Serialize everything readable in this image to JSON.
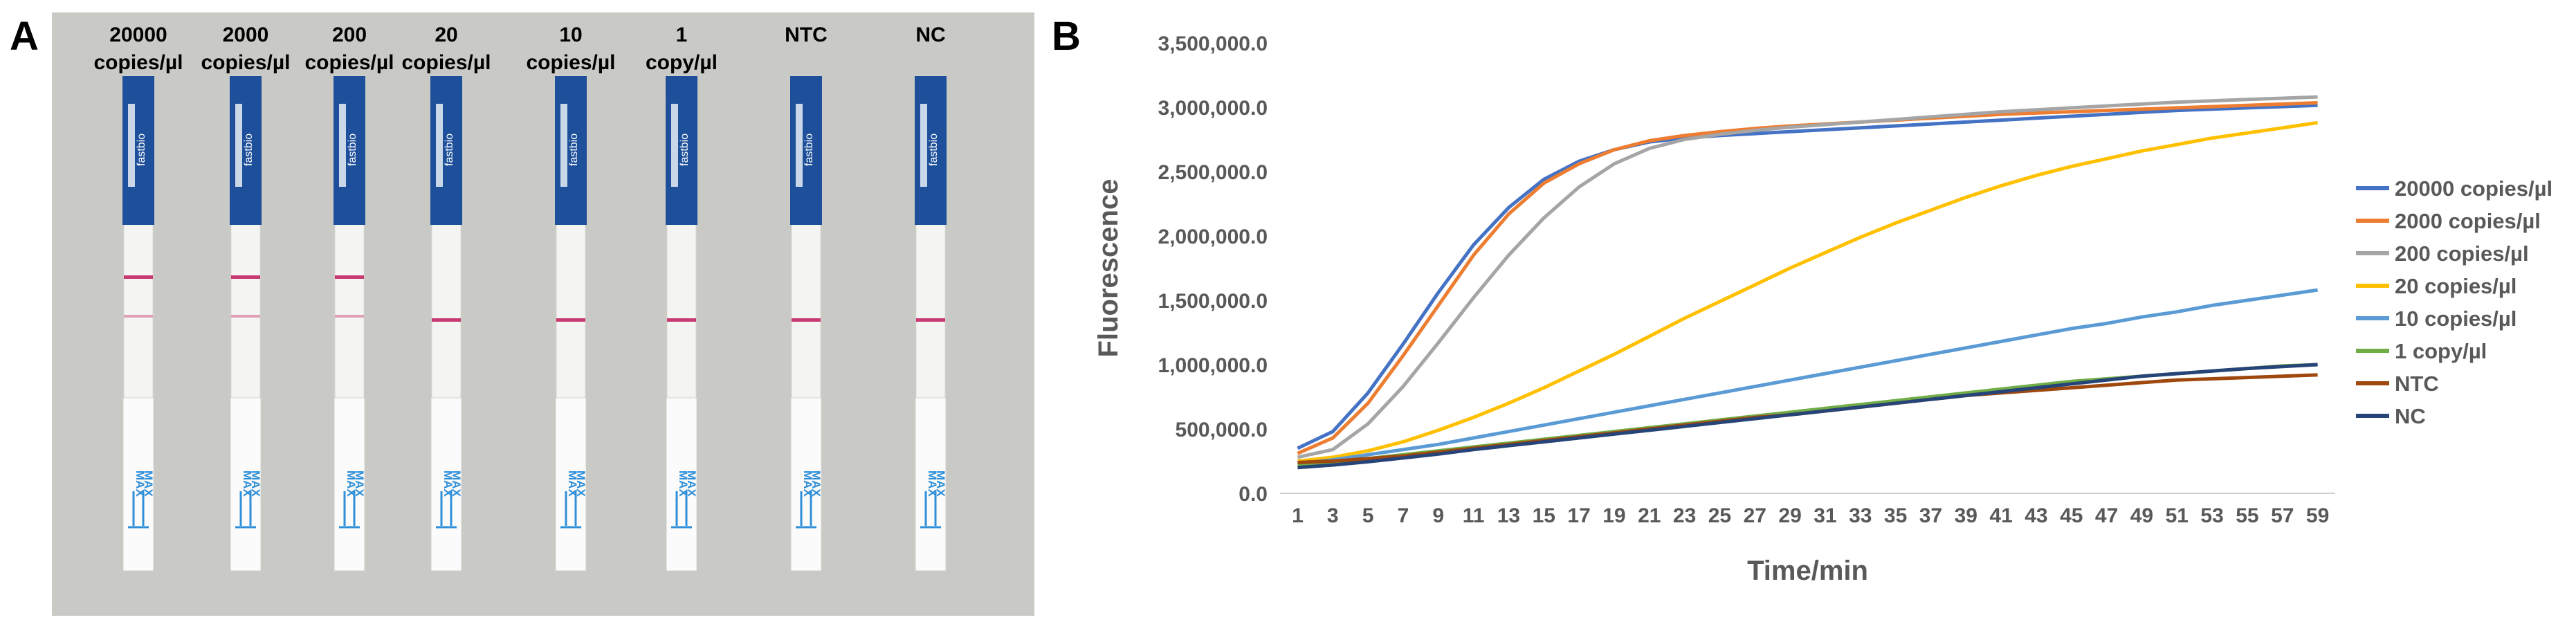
{
  "panel_a": {
    "letter": "A",
    "strips": [
      {
        "label_line1": "20000",
        "label_line2": "copies/µl",
        "control_line": true,
        "test_line": true
      },
      {
        "label_line1": "2000",
        "label_line2": "copies/µl",
        "control_line": true,
        "test_line": true
      },
      {
        "label_line1": "200",
        "label_line2": "copies/µl",
        "control_line": true,
        "test_line": true
      },
      {
        "label_line1": "20",
        "label_line2": "copies/µl",
        "control_line": true,
        "test_line": false
      },
      {
        "label_line1": "10",
        "label_line2": "copies/µl",
        "control_line": true,
        "test_line": false
      },
      {
        "label_line1": "1",
        "label_line2": "copy/µl",
        "control_line": true,
        "test_line": false
      },
      {
        "label_line1": "NTC",
        "label_line2": "",
        "control_line": true,
        "test_line": false
      },
      {
        "label_line1": "NC",
        "label_line2": "",
        "control_line": true,
        "test_line": false
      }
    ],
    "strip_brand_text": "fastbio",
    "strip_max_text": "MAX"
  },
  "panel_b": {
    "letter": "B"
  },
  "chart_data": {
    "type": "line",
    "title": "",
    "xlabel": "Time/min",
    "ylabel": "Fluorescence",
    "x": [
      1,
      3,
      5,
      7,
      9,
      11,
      13,
      15,
      17,
      19,
      21,
      23,
      25,
      27,
      29,
      31,
      33,
      35,
      37,
      39,
      41,
      43,
      45,
      47,
      49,
      51,
      53,
      55,
      57,
      59
    ],
    "x_tick_labels": [
      "1",
      "3",
      "5",
      "7",
      "9",
      "11",
      "13",
      "15",
      "17",
      "19",
      "21",
      "23",
      "25",
      "27",
      "29",
      "31",
      "33",
      "35",
      "37",
      "39",
      "41",
      "43",
      "45",
      "47",
      "49",
      "51",
      "53",
      "55",
      "57",
      "59"
    ],
    "y_tick_labels": [
      "0.0",
      "500,000.0",
      "1,000,000.0",
      "1,500,000.0",
      "2,000,000.0",
      "2,500,000.0",
      "3,000,000.0",
      "3,500,000.0"
    ],
    "ylim": [
      0,
      3500000
    ],
    "xlim": [
      0,
      60
    ],
    "grid": false,
    "legend_position": "right",
    "series": [
      {
        "name": "20000 copies/µl",
        "color": "#4472C4",
        "values": [
          350000,
          480000,
          780000,
          1160000,
          1560000,
          1930000,
          2220000,
          2440000,
          2580000,
          2670000,
          2730000,
          2760000,
          2780000,
          2795000,
          2810000,
          2825000,
          2840000,
          2855000,
          2870000,
          2885000,
          2900000,
          2915000,
          2930000,
          2945000,
          2960000,
          2975000,
          2985000,
          2995000,
          3005000,
          3015000
        ]
      },
      {
        "name": "2000 copies/µl",
        "color": "#ED7D31",
        "values": [
          310000,
          430000,
          700000,
          1070000,
          1460000,
          1850000,
          2170000,
          2410000,
          2560000,
          2670000,
          2740000,
          2780000,
          2810000,
          2835000,
          2855000,
          2870000,
          2885000,
          2900000,
          2915000,
          2930000,
          2945000,
          2955000,
          2965000,
          2975000,
          2985000,
          2995000,
          3005000,
          3015000,
          3025000,
          3035000
        ]
      },
      {
        "name": "200 copies/µl",
        "color": "#A5A5A5",
        "values": [
          280000,
          340000,
          540000,
          830000,
          1170000,
          1520000,
          1850000,
          2140000,
          2380000,
          2560000,
          2680000,
          2750000,
          2790000,
          2820000,
          2845000,
          2865000,
          2885000,
          2905000,
          2925000,
          2945000,
          2965000,
          2980000,
          2995000,
          3010000,
          3025000,
          3040000,
          3050000,
          3060000,
          3070000,
          3080000
        ]
      },
      {
        "name": "20 copies/µl",
        "color": "#FFC000",
        "values": [
          250000,
          280000,
          330000,
          400000,
          490000,
          590000,
          700000,
          820000,
          950000,
          1080000,
          1220000,
          1360000,
          1490000,
          1620000,
          1750000,
          1870000,
          1990000,
          2100000,
          2200000,
          2300000,
          2390000,
          2470000,
          2540000,
          2600000,
          2660000,
          2710000,
          2760000,
          2800000,
          2840000,
          2880000
        ]
      },
      {
        "name": "10 copies/µl",
        "color": "#5B9BD5",
        "values": [
          230000,
          260000,
          300000,
          340000,
          380000,
          430000,
          480000,
          530000,
          580000,
          630000,
          680000,
          730000,
          780000,
          830000,
          880000,
          930000,
          980000,
          1030000,
          1080000,
          1130000,
          1180000,
          1230000,
          1280000,
          1320000,
          1370000,
          1410000,
          1460000,
          1500000,
          1540000,
          1580000
        ]
      },
      {
        "name": "1 copy/µl",
        "color": "#70AD47",
        "values": [
          220000,
          240000,
          270000,
          300000,
          330000,
          360000,
          390000,
          420000,
          450000,
          480000,
          510000,
          540000,
          570000,
          600000,
          630000,
          660000,
          690000,
          720000,
          750000,
          780000,
          810000,
          840000,
          870000,
          890000,
          910000,
          930000,
          950000,
          970000,
          990000,
          1000000
        ]
      },
      {
        "name": "NTC",
        "color": "#9E480E",
        "values": [
          240000,
          250000,
          270000,
          290000,
          320000,
          350000,
          380000,
          410000,
          440000,
          470000,
          500000,
          530000,
          560000,
          590000,
          610000,
          640000,
          670000,
          700000,
          730000,
          760000,
          780000,
          800000,
          820000,
          840000,
          860000,
          880000,
          890000,
          900000,
          910000,
          920000
        ]
      },
      {
        "name": "NC",
        "color": "#264478",
        "values": [
          200000,
          220000,
          245000,
          275000,
          305000,
          340000,
          370000,
          400000,
          430000,
          460000,
          490000,
          520000,
          550000,
          580000,
          610000,
          640000,
          670000,
          700000,
          730000,
          760000,
          790000,
          820000,
          850000,
          880000,
          910000,
          930000,
          950000,
          970000,
          985000,
          1000000
        ]
      }
    ]
  }
}
